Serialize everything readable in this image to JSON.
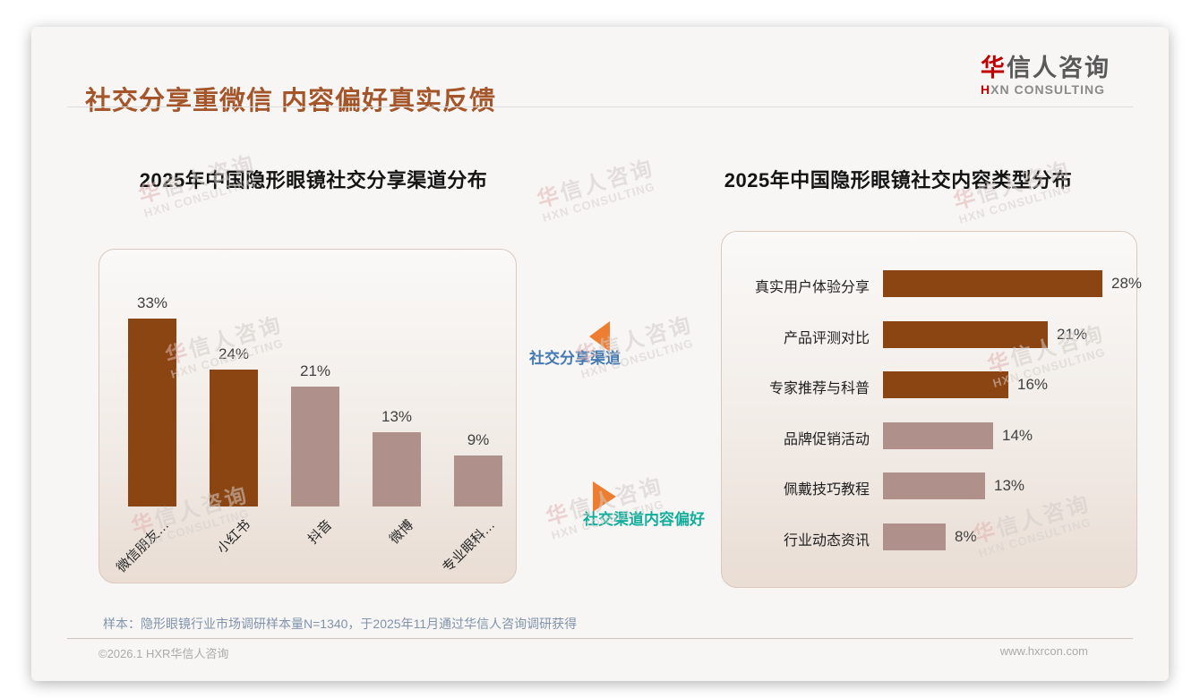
{
  "page": {
    "title": "社交分享重微信 内容偏好真实反馈",
    "logo": {
      "cn_first": "华",
      "cn_rest": "信人咨询",
      "en_first": "H",
      "en_rest": "XN CONSULTING"
    },
    "footnote": "样本：隐形眼镜行业市场调研样本量N=1340，于2025年11月通过华信人咨询调研获得",
    "footer_left": "©2026.1 HXR华信人咨询",
    "footer_right": "www.hxrcon.com",
    "watermark": {
      "line1_first": "华",
      "line1_rest": "信人咨询",
      "line2": "HXN CONSULTING"
    }
  },
  "connector": {
    "top_label": "社交分享渠道",
    "bottom_label": "社交渠道内容偏好",
    "top_label_color": "#4579B2",
    "bottom_label_color": "#13AE9B",
    "arrow_color": "#ED7D31"
  },
  "colors": {
    "title_brown": "#A4552A",
    "dark_bar": "#8B4513",
    "light_bar": "#B0908A",
    "logo_red": "#C00000"
  },
  "chart_data": [
    {
      "type": "bar",
      "orientation": "vertical",
      "title": "2025年中国隐形眼镜社交分享渠道分布",
      "categories": [
        "微信朋友…",
        "小红书",
        "抖音",
        "微博",
        "专业眼科…"
      ],
      "values": [
        33,
        24,
        21,
        13,
        9
      ],
      "unit": "%",
      "bar_colors": [
        "#8B4513",
        "#8B4513",
        "#B0908A",
        "#B0908A",
        "#B0908A"
      ],
      "data_labels": true,
      "grid": false,
      "ylim": [
        0,
        35
      ]
    },
    {
      "type": "bar",
      "orientation": "horizontal",
      "title": "2025年中国隐形眼镜社交内容类型分布",
      "categories": [
        "真实用户体验分享",
        "产品评测对比",
        "专家推荐与科普",
        "品牌促销活动",
        "佩戴技巧教程",
        "行业动态资讯"
      ],
      "values": [
        28,
        21,
        16,
        14,
        13,
        8
      ],
      "unit": "%",
      "bar_colors": [
        "#8B4513",
        "#8B4513",
        "#8B4513",
        "#B0908A",
        "#B0908A",
        "#B0908A"
      ],
      "data_labels": true,
      "grid": false,
      "xlim": [
        0,
        30
      ]
    }
  ]
}
